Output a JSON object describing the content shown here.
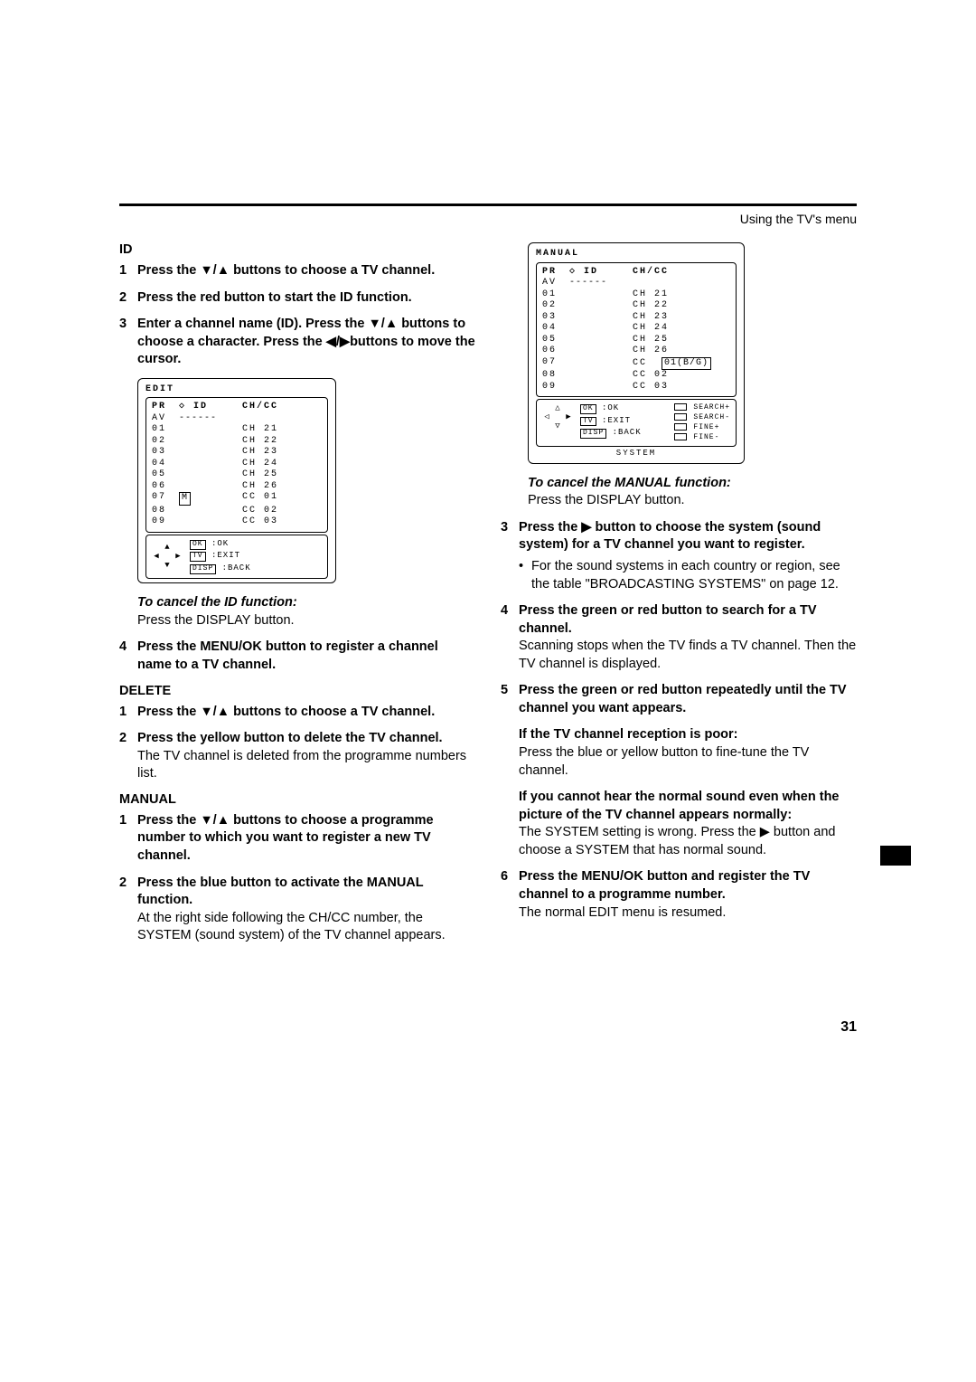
{
  "header": {
    "section_title": "Using the TV's menu"
  },
  "left": {
    "id_label": "ID",
    "step1": "Press the ▼/▲ buttons to choose a TV channel.",
    "step2": "Press the red button to start the ID function.",
    "step3": "Enter a channel name (ID). Press the ▼/▲ buttons to choose a character. Press the ◀/▶buttons to move the cursor.",
    "osd_edit": {
      "title": "EDIT",
      "header": {
        "pr": "PR",
        "id_icon": "◇",
        "id": "ID",
        "chcc": "CH/CC"
      },
      "dash_row": "------",
      "rows": [
        {
          "pr": "AV",
          "ch": "",
          "cc": ""
        },
        {
          "pr": "01",
          "ch": "CH",
          "cc": "21"
        },
        {
          "pr": "02",
          "ch": "CH",
          "cc": "22"
        },
        {
          "pr": "03",
          "ch": "CH",
          "cc": "23"
        },
        {
          "pr": "04",
          "ch": "CH",
          "cc": "24"
        },
        {
          "pr": "05",
          "ch": "CH",
          "cc": "25"
        },
        {
          "pr": "06",
          "ch": "CH",
          "cc": "26"
        },
        {
          "pr": "07",
          "ch": "CC",
          "cc": "01",
          "id_cursor": "M"
        },
        {
          "pr": "08",
          "ch": "CC",
          "cc": "02"
        },
        {
          "pr": "09",
          "ch": "CC",
          "cc": "03"
        }
      ],
      "controls": [
        {
          "key": "OK",
          "label": ":OK"
        },
        {
          "key": "TV",
          "label": ":EXIT"
        },
        {
          "key": "DISP",
          "label": ":BACK"
        }
      ]
    },
    "cancel_id_title": "To cancel the ID function:",
    "cancel_id_body": "Press the DISPLAY button.",
    "step4": "Press the MENU/OK button to register a channel name to a TV channel.",
    "delete_label": "DELETE",
    "del_step1": "Press the ▼/▲ buttons to choose a TV channel.",
    "del_step2_bold": "Press the yellow button to delete the TV channel.",
    "del_step2_body": "The TV channel is deleted from the programme numbers list.",
    "manual_label": "MANUAL",
    "man_step1": "Press the ▼/▲ buttons to choose a programme number to which you want to register a new TV channel.",
    "man_step2_bold": "Press the blue button to activate the MANUAL function.",
    "man_step2_body": "At the right side following the CH/CC number, the SYSTEM (sound system) of the TV channel appears."
  },
  "right": {
    "osd_manual": {
      "title": "MANUAL",
      "header": {
        "pr": "PR",
        "id_icon": "◇",
        "id": "ID",
        "chcc": "CH/CC"
      },
      "dash_row": "------",
      "rows": [
        {
          "pr": "AV",
          "ch": "",
          "cc": ""
        },
        {
          "pr": "01",
          "ch": "CH",
          "cc": "21"
        },
        {
          "pr": "02",
          "ch": "CH",
          "cc": "22"
        },
        {
          "pr": "03",
          "ch": "CH",
          "cc": "23"
        },
        {
          "pr": "04",
          "ch": "CH",
          "cc": "24"
        },
        {
          "pr": "05",
          "ch": "CH",
          "cc": "25"
        },
        {
          "pr": "06",
          "ch": "CH",
          "cc": "26"
        },
        {
          "pr": "07",
          "ch": "CC",
          "cc": "01(B/G)",
          "hl": true
        },
        {
          "pr": "08",
          "ch": "CC",
          "cc": "02"
        },
        {
          "pr": "09",
          "ch": "CC",
          "cc": "03"
        }
      ],
      "controls_left": [
        {
          "key": "OK",
          "label": ":OK"
        },
        {
          "key": "TV",
          "label": ":EXIT"
        },
        {
          "key": "DISP",
          "label": ":BACK"
        }
      ],
      "legend": [
        {
          "label": "SEARCH+"
        },
        {
          "label": "SEARCH-"
        },
        {
          "label": "FINE+"
        },
        {
          "label": "FINE-"
        }
      ],
      "system_label": "SYSTEM"
    },
    "cancel_man_title": "To cancel the MANUAL function:",
    "cancel_man_body": "Press the DISPLAY button.",
    "step3_bold": "Press the ▶ button to choose the system (sound system) for a TV channel you want to register.",
    "step3_bullet": "For the sound systems in each country or region, see the table \"BROADCASTING SYSTEMS\" on page 12.",
    "step4_bold": "Press the green or red button to search for a TV channel.",
    "step4_body": "Scanning stops when the TV finds a TV channel. Then the TV channel is displayed.",
    "step5_bold": "Press the green or red button repeatedly until the TV channel you want appears.",
    "step5_p1_bold": "If the TV channel reception is poor:",
    "step5_p1_body": "Press the blue or yellow button to fine-tune the TV channel.",
    "step5_p2_bold": "If you cannot hear the normal sound even when the picture of the TV channel appears normally:",
    "step5_p2_body": "The SYSTEM setting is wrong. Press the ▶ button and choose a SYSTEM that has normal sound.",
    "step6_bold": "Press the MENU/OK button and register the TV channel to a programme number.",
    "step6_body": "The normal EDIT menu is resumed."
  },
  "page_number": "31",
  "colors": {
    "text": "#000000",
    "background": "#ffffff"
  }
}
